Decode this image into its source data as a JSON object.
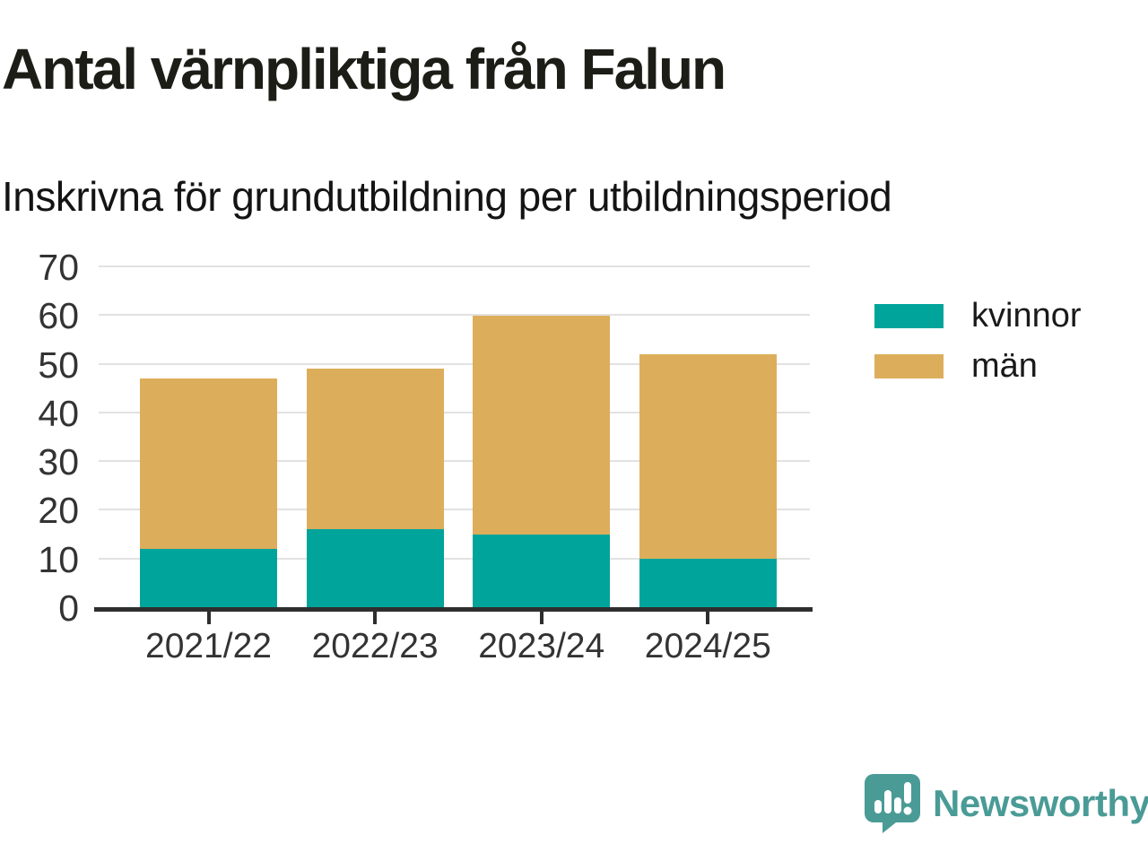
{
  "title": "Antal värnpliktiga från Falun",
  "subtitle": "Inskrivna för grundutbildning per utbildningsperiod",
  "chart_data": {
    "type": "bar",
    "stacked": true,
    "title": "Antal värnpliktiga från Falun",
    "subtitle": "Inskrivna för grundutbildning per utbildningsperiod",
    "categories": [
      "2021/22",
      "2022/23",
      "2023/24",
      "2024/25"
    ],
    "series": [
      {
        "name": "kvinnor",
        "color": "#00a49a",
        "values": [
          12,
          16,
          15,
          10
        ]
      },
      {
        "name": "män",
        "color": "#dcae5b",
        "values": [
          35,
          33,
          45,
          42
        ]
      }
    ],
    "totals": [
      47,
      49,
      60,
      52
    ],
    "xlabel": "",
    "ylabel": "",
    "ylim": [
      0,
      70
    ],
    "yticks": [
      0,
      10,
      20,
      30,
      40,
      50,
      60,
      70
    ],
    "grid": true,
    "legend_position": "right"
  },
  "legend": {
    "items": [
      {
        "label": "kvinnor",
        "color": "#00a49a"
      },
      {
        "label": "män",
        "color": "#dcae5b"
      }
    ]
  },
  "colors": {
    "women": "#00a49a",
    "men": "#dcae5b",
    "axis": "#2e2e2e",
    "grid": "#e2e2e2",
    "logo": "#4a9b96"
  },
  "branding": {
    "logo_label": "Newsworthy",
    "logo_icon": "bar-chart-speech-bubble-icon"
  }
}
